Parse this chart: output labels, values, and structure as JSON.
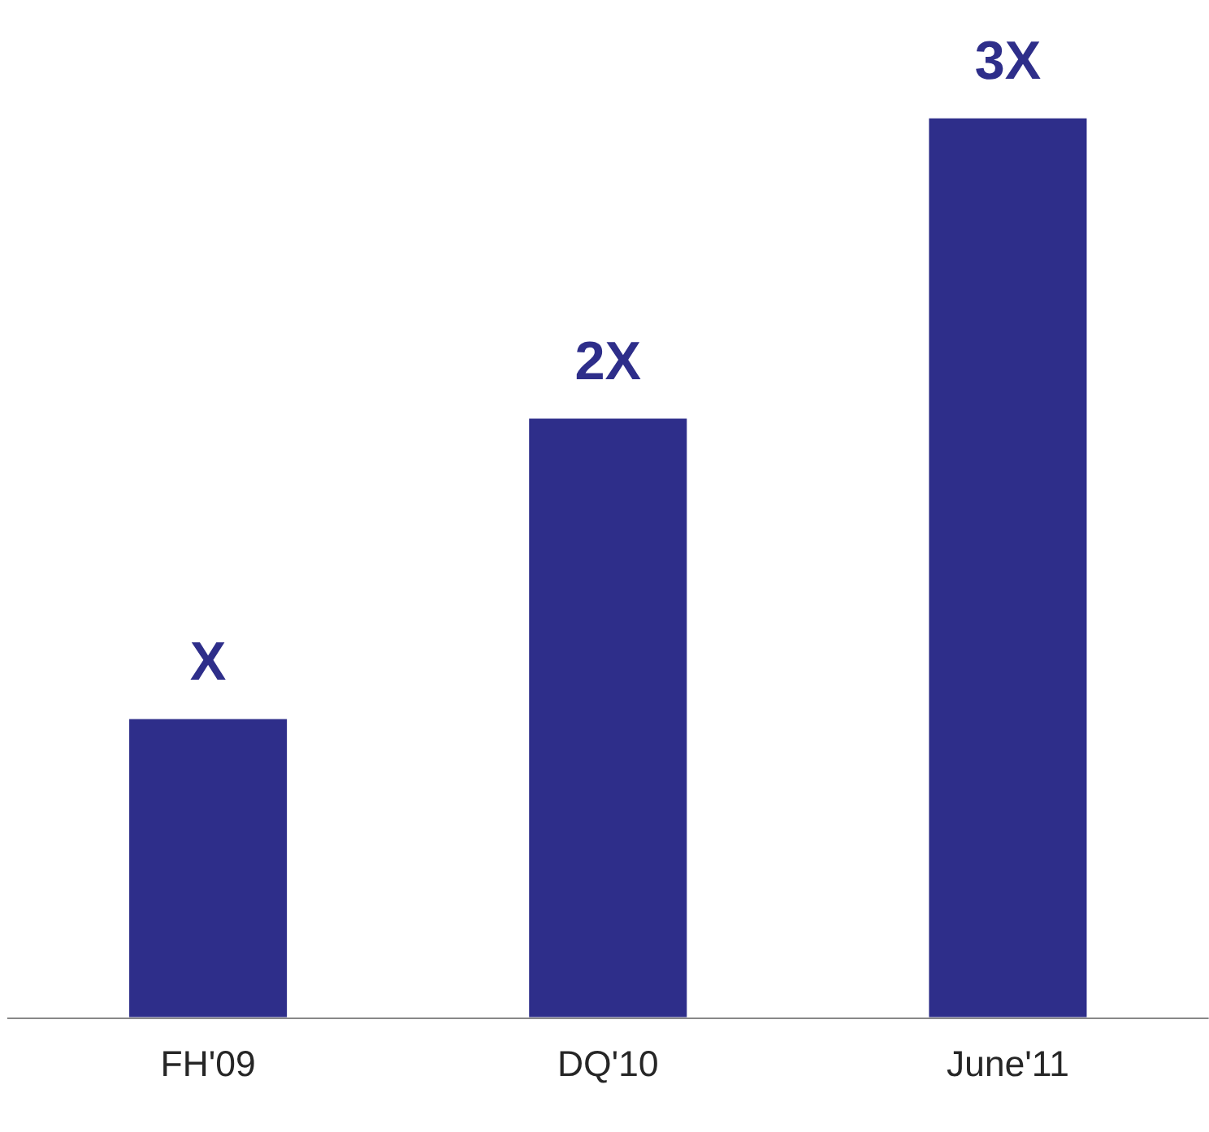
{
  "chart_data": {
    "type": "bar",
    "categories": [
      "FH'09",
      "DQ'10",
      "June'11"
    ],
    "values": [
      1,
      2,
      3
    ],
    "value_labels": [
      "X",
      "2X",
      "3X"
    ],
    "color": "#2e2e8a",
    "grid": false,
    "legend": false
  }
}
